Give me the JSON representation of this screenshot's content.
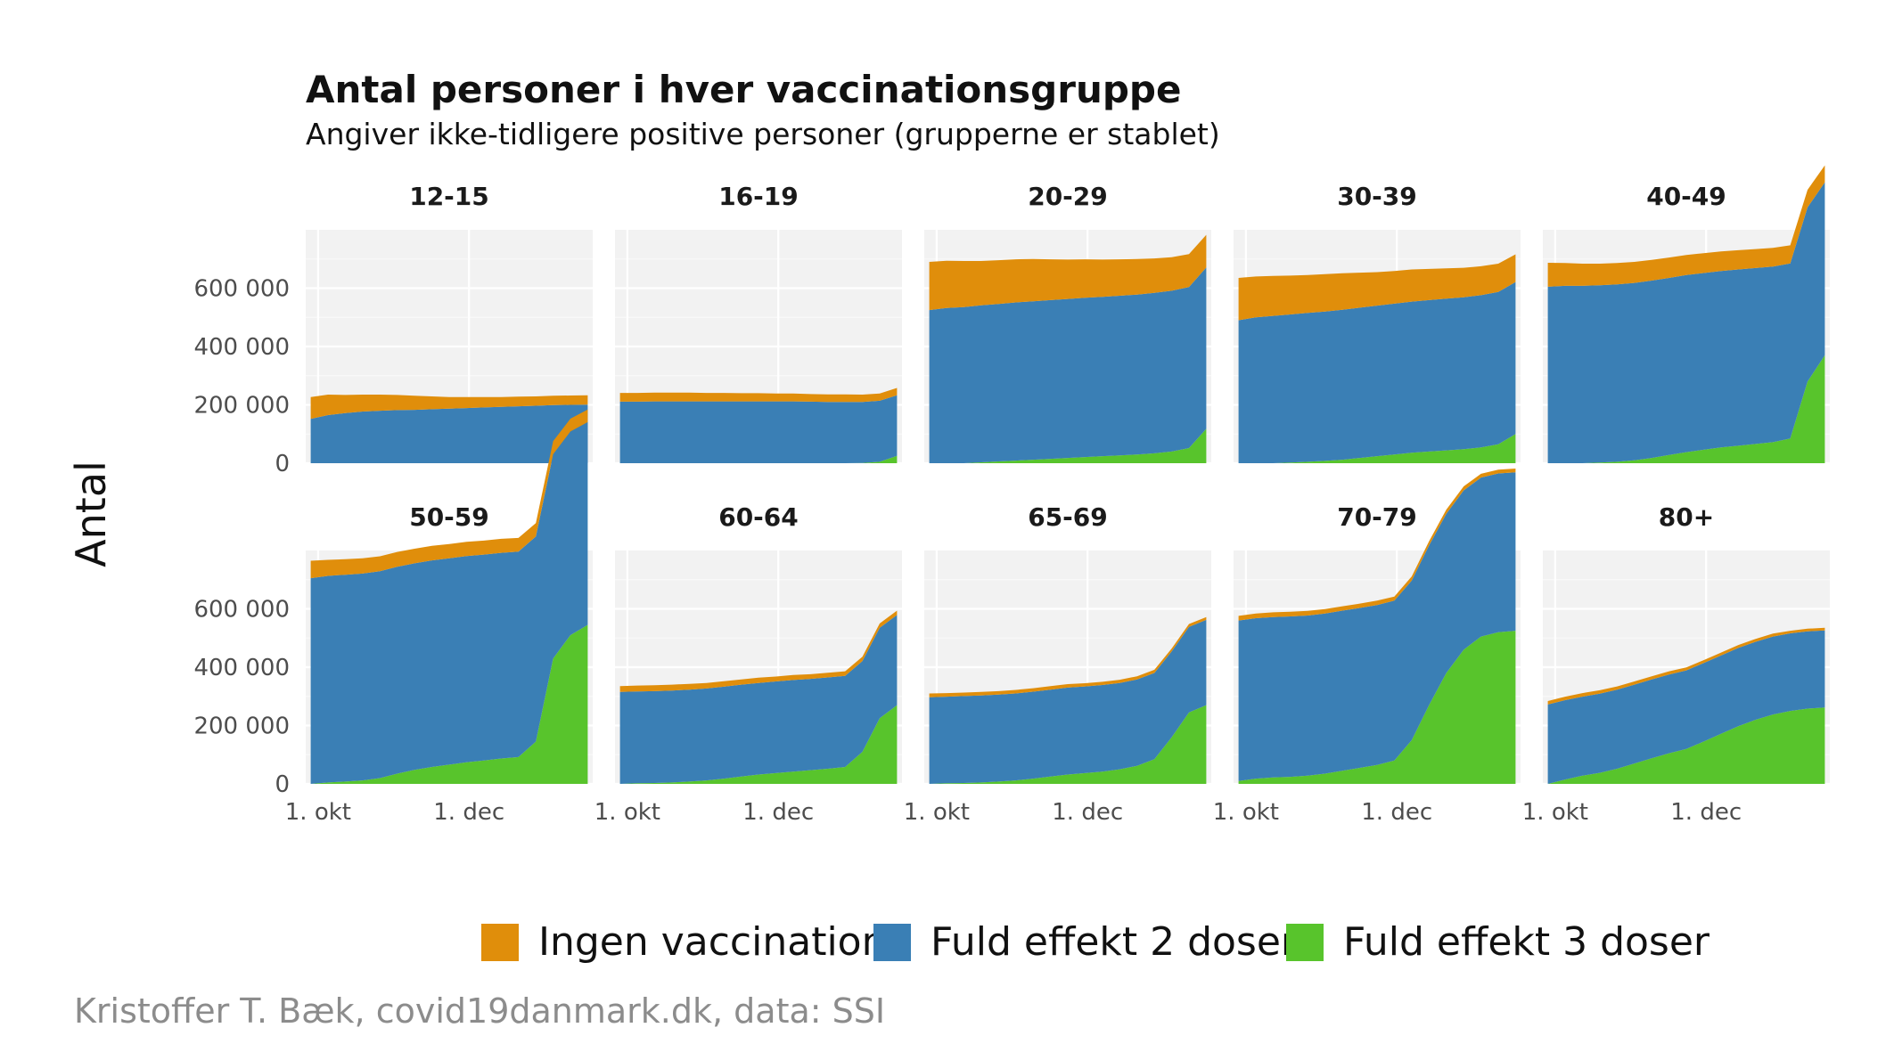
{
  "chart_data": {
    "type": "area",
    "stacked": true,
    "title": "Antal personer i hver vaccinationsgruppe",
    "subtitle": "Angiver ikke-tidligere positive personer (grupperne er stablet)",
    "ylabel": "Antal",
    "caption": "Kristoffer T. Bæk, covid19danmark.dk, data: SSI",
    "x_dates": [
      "2021-09-28",
      "2021-10-05",
      "2021-10-12",
      "2021-10-19",
      "2021-10-26",
      "2021-11-02",
      "2021-11-09",
      "2021-11-16",
      "2021-11-23",
      "2021-11-30",
      "2021-12-07",
      "2021-12-14",
      "2021-12-21",
      "2021-12-28",
      "2022-01-04",
      "2022-01-11",
      "2022-01-18"
    ],
    "xlim": [
      "2021-09-26",
      "2022-01-20"
    ],
    "x_ticks": [
      {
        "date": "2021-10-01",
        "label": "1. okt"
      },
      {
        "date": "2021-12-01",
        "label": "1. dec"
      }
    ],
    "ylim": [
      0,
      800000
    ],
    "y_ticks": [
      {
        "value": 0,
        "label": "0"
      },
      {
        "value": 200000,
        "label": "200 000"
      },
      {
        "value": 400000,
        "label": "400 000"
      },
      {
        "value": 600000,
        "label": "600 000"
      }
    ],
    "grid": true,
    "legend_position": "bottom",
    "series_meta": [
      {
        "key": "ingen",
        "name": "Ingen vaccination",
        "color": "#E08E0B"
      },
      {
        "key": "to",
        "name": "Fuld effekt 2 doser",
        "color": "#3A7FB5"
      },
      {
        "key": "tre",
        "name": "Fuld effekt 3 doser",
        "color": "#58C42C"
      }
    ],
    "panels": [
      {
        "label": "12-15",
        "ingen": [
          75000,
          70000,
          62000,
          58000,
          55000,
          52000,
          48000,
          44000,
          40000,
          38000,
          36000,
          34000,
          33000,
          32000,
          32000,
          32000,
          32000
        ],
        "to": [
          152000,
          165000,
          172000,
          177000,
          180000,
          182000,
          183000,
          185000,
          187000,
          189000,
          191000,
          193000,
          195000,
          197000,
          199000,
          200000,
          201000
        ],
        "tre": [
          0,
          0,
          0,
          0,
          0,
          0,
          0,
          0,
          0,
          0,
          0,
          0,
          0,
          0,
          0,
          0,
          0
        ]
      },
      {
        "label": "16-19",
        "ingen": [
          30000,
          30000,
          30000,
          30000,
          30000,
          29000,
          29000,
          28000,
          28000,
          27000,
          27000,
          26000,
          26000,
          26000,
          25000,
          25000,
          25000
        ],
        "to": [
          211000,
          211000,
          212000,
          212000,
          212000,
          212000,
          212000,
          212000,
          212000,
          212000,
          212000,
          211000,
          210000,
          210000,
          209000,
          209000,
          208000
        ],
        "tre": [
          0,
          0,
          0,
          0,
          0,
          0,
          0,
          0,
          0,
          0,
          0,
          0,
          0,
          0,
          1000,
          5000,
          25000
        ]
      },
      {
        "label": "20-29",
        "ingen": [
          165000,
          162000,
          158000,
          152000,
          150000,
          148000,
          145000,
          140000,
          135000,
          132000,
          128000,
          125000,
          122000,
          118000,
          115000,
          113000,
          112000
        ],
        "to": [
          525000,
          532000,
          535000,
          538000,
          540000,
          542000,
          543000,
          544000,
          545000,
          546000,
          546000,
          547000,
          548000,
          550000,
          551000,
          552000,
          553000
        ],
        "tre": [
          0,
          0,
          0,
          3000,
          6000,
          9000,
          12000,
          15000,
          18000,
          21000,
          24000,
          27000,
          30000,
          34000,
          40000,
          52000,
          118000
        ]
      },
      {
        "label": "30-39",
        "ingen": [
          145000,
          140000,
          137000,
          133000,
          130000,
          128000,
          125000,
          120000,
          115000,
          112000,
          110000,
          107000,
          104000,
          101000,
          99000,
          97000,
          95000
        ],
        "to": [
          490000,
          500000,
          505000,
          508000,
          510000,
          512000,
          514000,
          515000,
          516000,
          517000,
          518000,
          519000,
          520000,
          521000,
          522000,
          522000,
          521000
        ],
        "tre": [
          0,
          0,
          0,
          2000,
          5000,
          8000,
          12000,
          18000,
          24000,
          30000,
          36000,
          40000,
          44000,
          48000,
          54000,
          65000,
          100000
        ]
      },
      {
        "label": "40-49",
        "ingen": [
          82000,
          78000,
          76000,
          74000,
          73000,
          72000,
          71000,
          70000,
          69000,
          68000,
          67000,
          66000,
          65000,
          64000,
          62000,
          60000,
          58000
        ],
        "to": [
          605000,
          608000,
          608000,
          608000,
          608000,
          608000,
          608000,
          607000,
          607000,
          606000,
          605000,
          604000,
          603000,
          602000,
          600000,
          597000,
          593000
        ],
        "tre": [
          0,
          0,
          0,
          2000,
          5000,
          10000,
          18000,
          28000,
          38000,
          46000,
          54000,
          60000,
          66000,
          72000,
          85000,
          280000,
          370000
        ]
      },
      {
        "label": "50-59",
        "ingen": [
          60000,
          55000,
          53000,
          52000,
          51000,
          51000,
          50000,
          50000,
          49000,
          49000,
          48000,
          48000,
          47000,
          46000,
          45000,
          44000,
          43000
        ],
        "to": [
          705000,
          708000,
          709000,
          709000,
          709000,
          709000,
          708000,
          708000,
          707000,
          707000,
          706000,
          705000,
          704000,
          703000,
          700000,
          698000,
          695000
        ],
        "tre": [
          0,
          5000,
          8000,
          12000,
          20000,
          35000,
          48000,
          58000,
          66000,
          74000,
          80000,
          87000,
          92000,
          145000,
          430000,
          510000,
          545000
        ]
      },
      {
        "label": "60-64",
        "ingen": [
          20000,
          20000,
          20000,
          20000,
          20000,
          19000,
          19000,
          18000,
          18000,
          17000,
          17000,
          16000,
          16000,
          16000,
          15000,
          15000,
          15000
        ],
        "to": [
          315000,
          315000,
          315000,
          315000,
          315000,
          315000,
          315000,
          315000,
          314000,
          314000,
          314000,
          313000,
          313000,
          312000,
          311000,
          310000,
          309000
        ],
        "tre": [
          0,
          2000,
          3000,
          5000,
          8000,
          12000,
          18000,
          25000,
          32000,
          37000,
          42000,
          47000,
          52000,
          58000,
          110000,
          225000,
          270000
        ]
      },
      {
        "label": "65-69",
        "ingen": [
          13000,
          12000,
          12000,
          12000,
          12000,
          12000,
          12000,
          12000,
          12000,
          11000,
          11000,
          11000,
          11000,
          11000,
          10000,
          10000,
          10000
        ],
        "to": [
          297000,
          297000,
          298000,
          298000,
          298000,
          298000,
          298000,
          298000,
          298000,
          297000,
          297000,
          296000,
          296000,
          295000,
          294000,
          293000,
          292000
        ],
        "tre": [
          0,
          2000,
          3000,
          5000,
          8000,
          12000,
          18000,
          25000,
          32000,
          37000,
          42000,
          50000,
          62000,
          85000,
          160000,
          245000,
          270000
        ]
      },
      {
        "label": "70-79",
        "ingen": [
          16000,
          16000,
          16000,
          16000,
          16000,
          15000,
          15000,
          15000,
          15000,
          14000,
          14000,
          14000,
          14000,
          14000,
          13000,
          13000,
          13000
        ],
        "to": [
          550000,
          550000,
          550000,
          550000,
          549000,
          549000,
          549000,
          548000,
          548000,
          548000,
          547000,
          547000,
          546000,
          546000,
          545000,
          544000,
          543000
        ],
        "tre": [
          10000,
          18000,
          22000,
          24000,
          28000,
          35000,
          45000,
          55000,
          65000,
          80000,
          150000,
          270000,
          380000,
          460000,
          505000,
          520000,
          525000
        ]
      },
      {
        "label": "80+",
        "ingen": [
          12000,
          12000,
          12000,
          12000,
          11000,
          11000,
          11000,
          11000,
          10000,
          10000,
          10000,
          10000,
          10000,
          10000,
          9000,
          9000,
          9000
        ],
        "to": [
          272000,
          272000,
          271000,
          271000,
          271000,
          270000,
          270000,
          270000,
          269000,
          269000,
          268000,
          268000,
          267000,
          267000,
          266000,
          265000,
          264000
        ],
        "tre": [
          0,
          15000,
          28000,
          38000,
          52000,
          70000,
          88000,
          105000,
          120000,
          145000,
          172000,
          198000,
          220000,
          238000,
          250000,
          258000,
          262000
        ]
      }
    ]
  }
}
